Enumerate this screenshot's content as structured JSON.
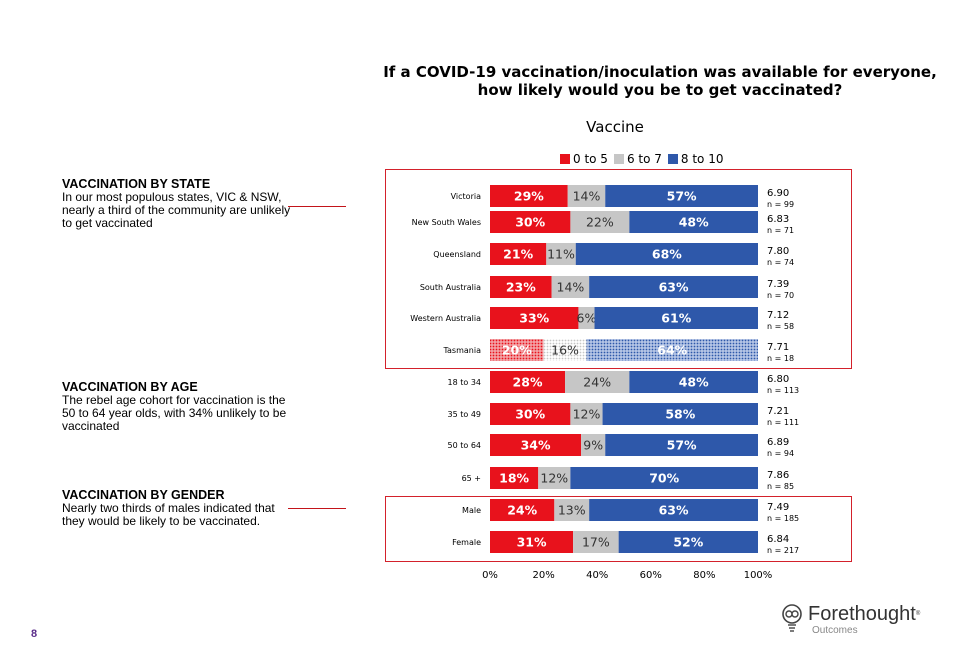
{
  "question_title": "If a COVID-19 vaccination/inoculation was available for everyone, how likely would you be to get vaccinated?",
  "page_number": "8",
  "logo": {
    "name": "Forethought",
    "sub": "Outcomes"
  },
  "sections": [
    {
      "heading": "VACCINATION BY STATE",
      "body": "In our most populous states, VIC & NSW, nearly a third of the community are unlikely to get vaccinated"
    },
    {
      "heading": "VACCINATION BY AGE",
      "body": "The rebel age cohort for vaccination is the 50 to 64 year olds, with 34% unlikely to be vaccinated"
    },
    {
      "heading": "VACCINATION BY GENDER",
      "body": "Nearly two thirds of males indicated that they would be likely to be vaccinated."
    }
  ],
  "colors": {
    "red": "#e8121c",
    "grey": "#c6c6c6",
    "blue": "#2e58aa",
    "highlight_border": "#d3212b"
  },
  "chart_data": {
    "type": "bar",
    "orientation": "horizontal",
    "stacked": true,
    "title": "Vaccine",
    "categories": [
      "Victoria",
      "New South Wales",
      "Queensland",
      "South Australia",
      "Western Australia",
      "Tasmania",
      "18 to 34",
      "35 to 49",
      "50 to 64",
      "65 +",
      "Male",
      "Female"
    ],
    "series": [
      {
        "name": "0 to 5",
        "color": "#e8121c",
        "values": [
          29,
          30,
          21,
          23,
          33,
          20,
          28,
          30,
          34,
          18,
          24,
          31
        ]
      },
      {
        "name": "6 to 7",
        "color": "#c6c6c6",
        "values": [
          14,
          22,
          11,
          14,
          6,
          16,
          24,
          12,
          9,
          12,
          13,
          17
        ]
      },
      {
        "name": "8 to 10",
        "color": "#2e58aa",
        "values": [
          57,
          48,
          68,
          63,
          61,
          64,
          48,
          58,
          57,
          70,
          63,
          52
        ]
      }
    ],
    "means": [
      "6.90",
      "6.83",
      "7.80",
      "7.39",
      "7.12",
      "7.71",
      "6.80",
      "7.21",
      "6.89",
      "7.86",
      "7.49",
      "6.84"
    ],
    "n_labels": [
      "n = 99",
      "n = 71",
      "n = 74",
      "n = 70",
      "n = 58",
      "n = 18",
      "n = 113",
      "n = 111",
      "n = 94",
      "n = 85",
      "n = 185",
      "n = 217"
    ],
    "low_base": [
      false,
      false,
      false,
      false,
      false,
      true,
      false,
      false,
      false,
      false,
      false,
      false
    ],
    "x_ticks": [
      "0%",
      "20%",
      "40%",
      "60%",
      "80%",
      "100%"
    ],
    "xlim": [
      0,
      100
    ],
    "legend_position": "top"
  }
}
